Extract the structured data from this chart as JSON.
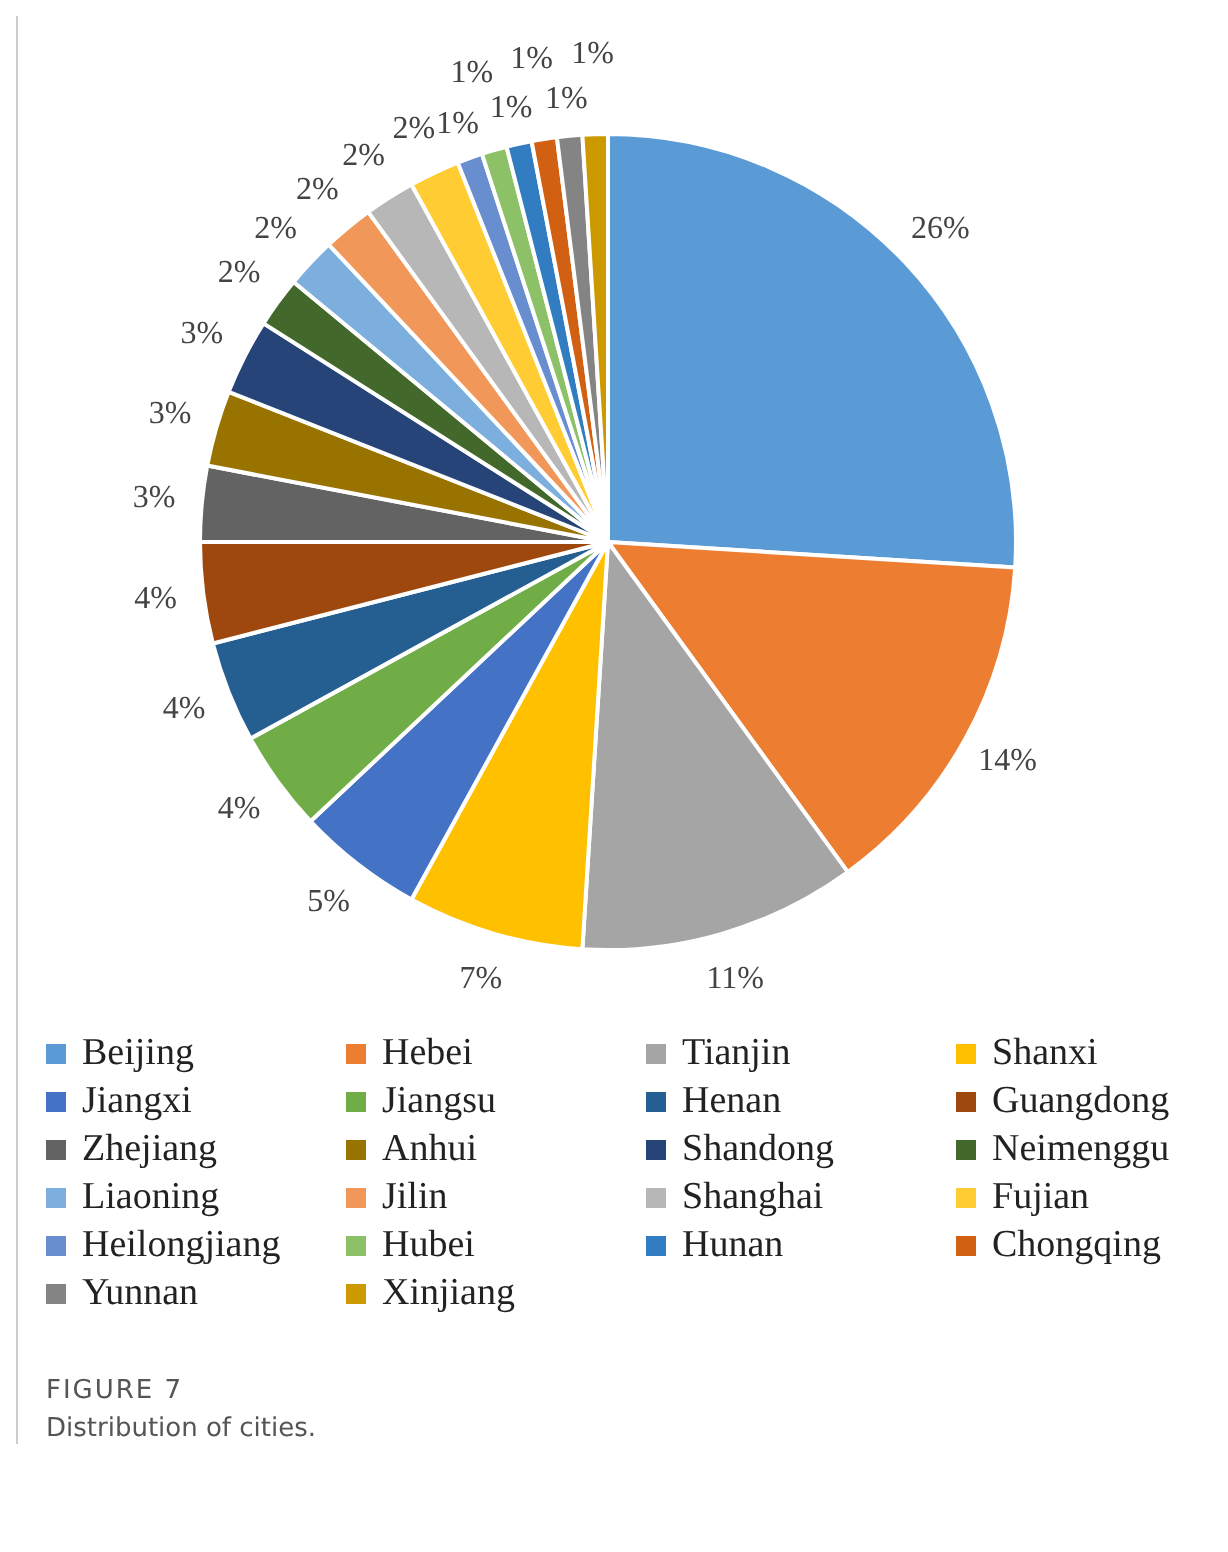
{
  "chart_data": {
    "type": "pie",
    "title": "FIGURE 7",
    "subtitle": "Distribution of cities.",
    "categories": [
      "Beijing",
      "Hebei",
      "Tianjin",
      "Shanxi",
      "Jiangxi",
      "Jiangsu",
      "Henan",
      "Guangdong",
      "Zhejiang",
      "Anhui",
      "Shandong",
      "Neimenggu",
      "Liaoning",
      "Jilin",
      "Shanghai",
      "Fujian",
      "Heilongjiang",
      "Hubei",
      "Hunan",
      "Chongqing",
      "Yunnan",
      "Xinjiang"
    ],
    "values": [
      26,
      14,
      11,
      7,
      5,
      4,
      4,
      4,
      3,
      3,
      3,
      2,
      2,
      2,
      2,
      2,
      1,
      1,
      1,
      1,
      1,
      1
    ],
    "colors": [
      "#5b9bd5",
      "#ed7d31",
      "#a5a5a5",
      "#ffc000",
      "#4472c4",
      "#70ad47",
      "#255e91",
      "#9e480e",
      "#636363",
      "#997300",
      "#264478",
      "#43682b",
      "#7cafdd",
      "#f1975a",
      "#b7b7b7",
      "#ffcd33",
      "#698ed0",
      "#8cc168",
      "#327dc2",
      "#d26012",
      "#848484",
      "#cc9a00"
    ],
    "value_labels": [
      "26%",
      "14%",
      "11%",
      "7%",
      "5%",
      "4%",
      "4%",
      "4%",
      "3%",
      "3%",
      "3%",
      "2%",
      "2%",
      "2%",
      "2%",
      "2%",
      "1%",
      "1%",
      "1%",
      "1%",
      "1%",
      "1%"
    ],
    "legend": "bottom"
  }
}
